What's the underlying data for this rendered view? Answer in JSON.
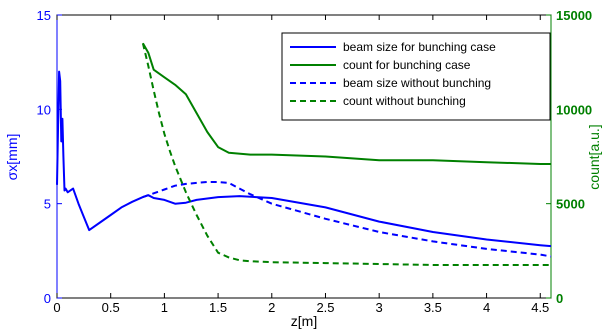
{
  "chart_data": {
    "type": "line",
    "xlabel": "z[m]",
    "ylabel_left": "σx[mm]",
    "ylabel_right": "count[a.u.]",
    "xlim": [
      0,
      4.6
    ],
    "ylim_left": [
      0,
      15
    ],
    "ylim_right": [
      0,
      15000
    ],
    "x_ticks": [
      "0",
      "0.5",
      "1",
      "1.5",
      "2",
      "2.5",
      "3",
      "3.5",
      "4",
      "4.5"
    ],
    "y_left_ticks": [
      "0",
      "5",
      "10",
      "15"
    ],
    "y_right_ticks": [
      "0",
      "5000",
      "10000",
      "15000"
    ],
    "grid": false,
    "legend_position": "top-right",
    "colors": {
      "left_axis": "#0000ff",
      "right_axis": "#008000"
    },
    "series": [
      {
        "name": "beam size for bunching case",
        "axis": "left",
        "color": "#0000ff",
        "dash": "solid",
        "x": [
          0,
          0.01,
          0.02,
          0.03,
          0.04,
          0.05,
          0.06,
          0.07,
          0.08,
          0.09,
          0.1,
          0.15,
          0.2,
          0.25,
          0.3,
          0.4,
          0.5,
          0.6,
          0.7,
          0.8,
          0.85,
          0.9,
          1.0,
          1.1,
          1.2,
          1.3,
          1.5,
          1.7,
          2.0,
          2.5,
          3.0,
          3.5,
          4.0,
          4.5,
          4.6
        ],
        "y": [
          6.0,
          9.2,
          12.0,
          11.5,
          8.3,
          9.5,
          7.5,
          5.7,
          5.8,
          5.7,
          5.6,
          5.8,
          5.0,
          4.3,
          3.6,
          4.0,
          4.4,
          4.8,
          5.1,
          5.35,
          5.45,
          5.3,
          5.2,
          5.0,
          5.05,
          5.2,
          5.35,
          5.4,
          5.3,
          4.8,
          4.05,
          3.5,
          3.1,
          2.8,
          2.75
        ]
      },
      {
        "name": "count for bunching case",
        "axis": "right",
        "color": "#008000",
        "dash": "solid",
        "x": [
          0.8,
          0.85,
          0.9,
          1.0,
          1.1,
          1.2,
          1.3,
          1.4,
          1.5,
          1.6,
          1.8,
          2.0,
          2.5,
          3.0,
          3.5,
          4.0,
          4.5,
          4.6
        ],
        "y": [
          13500,
          13000,
          12100,
          11700,
          11300,
          10800,
          9800,
          8800,
          8000,
          7700,
          7600,
          7600,
          7500,
          7300,
          7300,
          7200,
          7100,
          7100
        ]
      },
      {
        "name": "beam size without bunching",
        "axis": "left",
        "color": "#0000ff",
        "dash": "dashed",
        "x": [
          0.8,
          0.9,
          1.0,
          1.1,
          1.2,
          1.3,
          1.4,
          1.5,
          1.6,
          1.7,
          1.8,
          2.0,
          2.5,
          3.0,
          3.5,
          4.0,
          4.5,
          4.6
        ],
        "y": [
          5.35,
          5.55,
          5.75,
          5.95,
          6.05,
          6.1,
          6.15,
          6.15,
          6.1,
          5.8,
          5.5,
          5.0,
          4.2,
          3.5,
          3.0,
          2.6,
          2.3,
          2.2
        ]
      },
      {
        "name": "count without bunching",
        "axis": "right",
        "color": "#008000",
        "dash": "dashed",
        "x": [
          0.8,
          0.85,
          0.9,
          0.95,
          1.0,
          1.05,
          1.1,
          1.2,
          1.3,
          1.4,
          1.5,
          1.6,
          1.7,
          1.8,
          2.0,
          2.5,
          3.0,
          3.5,
          4.0,
          4.5,
          4.6
        ],
        "y": [
          13500,
          12300,
          11000,
          9800,
          8700,
          7800,
          7000,
          5600,
          4400,
          3300,
          2400,
          2150,
          2000,
          1950,
          1900,
          1850,
          1800,
          1750,
          1750,
          1750,
          1750
        ]
      }
    ]
  }
}
